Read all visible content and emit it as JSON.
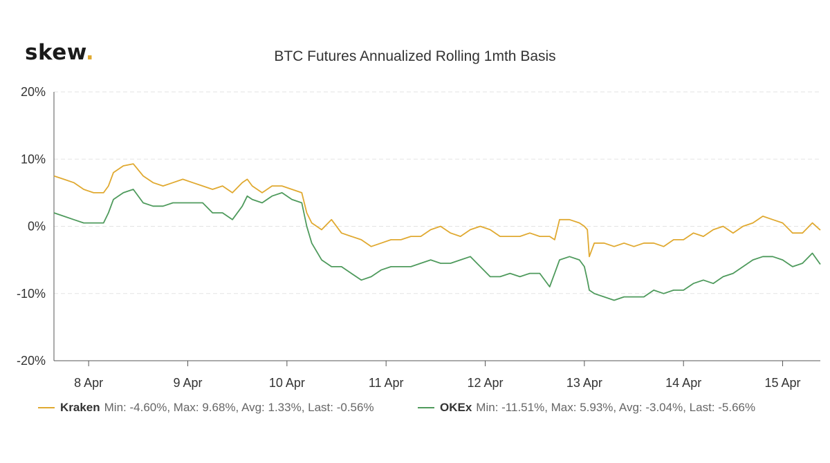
{
  "logo": {
    "text": "skew",
    "dot": "."
  },
  "chart_data": {
    "type": "line",
    "title": "BTC Futures Annualized Rolling 1mth Basis",
    "xlabel": "",
    "ylabel": "",
    "ylim": [
      -20,
      20
    ],
    "yticks": [
      20,
      10,
      0,
      -10,
      -20
    ],
    "ytick_labels": [
      "20%",
      "10%",
      "0%",
      "-10%",
      "-20%"
    ],
    "xlim": [
      7.65,
      15.38
    ],
    "xticks": [
      8,
      9,
      10,
      11,
      12,
      13,
      14,
      15
    ],
    "xtick_labels": [
      "8 Apr",
      "9 Apr",
      "10 Apr",
      "11 Apr",
      "12 Apr",
      "13 Apr",
      "14 Apr",
      "15 Apr"
    ],
    "grid": "horizontal-dashed",
    "legend_position": "bottom",
    "series": [
      {
        "name": "Kraken",
        "color": "#e0a930",
        "stats": "Min: -4.60%, Max: 9.68%, Avg: 1.33%, Last: -0.56%",
        "x": [
          7.65,
          7.75,
          7.85,
          7.95,
          8.05,
          8.15,
          8.2,
          8.25,
          8.35,
          8.45,
          8.55,
          8.65,
          8.75,
          8.85,
          8.95,
          9.05,
          9.15,
          9.25,
          9.35,
          9.45,
          9.55,
          9.6,
          9.65,
          9.75,
          9.85,
          9.95,
          10.05,
          10.15,
          10.2,
          10.25,
          10.35,
          10.45,
          10.55,
          10.65,
          10.75,
          10.85,
          10.95,
          11.05,
          11.15,
          11.25,
          11.35,
          11.45,
          11.55,
          11.65,
          11.75,
          11.85,
          11.95,
          12.05,
          12.15,
          12.25,
          12.35,
          12.45,
          12.55,
          12.65,
          12.7,
          12.75,
          12.85,
          12.95,
          13.0,
          13.03,
          13.05,
          13.1,
          13.2,
          13.3,
          13.4,
          13.5,
          13.6,
          13.7,
          13.8,
          13.9,
          14.0,
          14.1,
          14.2,
          14.3,
          14.4,
          14.5,
          14.6,
          14.7,
          14.8,
          14.9,
          15.0,
          15.1,
          15.2,
          15.3,
          15.38
        ],
        "y": [
          7.5,
          7.0,
          6.5,
          5.5,
          5.0,
          5.0,
          6.0,
          8.0,
          9.0,
          9.3,
          7.5,
          6.5,
          6.0,
          6.5,
          7.0,
          6.5,
          6.0,
          5.5,
          6.0,
          5.0,
          6.5,
          7.0,
          6.0,
          5.0,
          6.0,
          6.0,
          5.5,
          5.0,
          2.0,
          0.5,
          -0.5,
          1.0,
          -1.0,
          -1.5,
          -2.0,
          -3.0,
          -2.5,
          -2.0,
          -2.0,
          -1.5,
          -1.5,
          -0.5,
          0.0,
          -1.0,
          -1.5,
          -0.5,
          0.0,
          -0.5,
          -1.5,
          -1.5,
          -1.5,
          -1.0,
          -1.5,
          -1.5,
          -2.0,
          1.0,
          1.0,
          0.5,
          0.0,
          -0.5,
          -4.5,
          -2.5,
          -2.5,
          -3.0,
          -2.5,
          -3.0,
          -2.5,
          -2.5,
          -3.0,
          -2.0,
          -2.0,
          -1.0,
          -1.5,
          -0.5,
          0.0,
          -1.0,
          0.0,
          0.5,
          1.5,
          1.0,
          0.5,
          -1.0,
          -1.0,
          0.5,
          -0.56
        ]
      },
      {
        "name": "OKEx",
        "color": "#4e9a5c",
        "stats": "Min: -11.51%, Max: 5.93%, Avg: -3.04%, Last: -5.66%",
        "x": [
          7.65,
          7.75,
          7.85,
          7.95,
          8.05,
          8.15,
          8.2,
          8.25,
          8.35,
          8.45,
          8.55,
          8.65,
          8.75,
          8.85,
          8.95,
          9.05,
          9.15,
          9.25,
          9.35,
          9.45,
          9.55,
          9.6,
          9.65,
          9.75,
          9.85,
          9.95,
          10.05,
          10.15,
          10.2,
          10.25,
          10.35,
          10.45,
          10.55,
          10.65,
          10.75,
          10.85,
          10.95,
          11.05,
          11.15,
          11.25,
          11.35,
          11.45,
          11.55,
          11.65,
          11.75,
          11.85,
          11.95,
          12.05,
          12.15,
          12.25,
          12.35,
          12.45,
          12.55,
          12.65,
          12.7,
          12.75,
          12.85,
          12.95,
          13.0,
          13.03,
          13.05,
          13.1,
          13.2,
          13.3,
          13.4,
          13.5,
          13.6,
          13.7,
          13.8,
          13.9,
          14.0,
          14.1,
          14.2,
          14.3,
          14.4,
          14.5,
          14.6,
          14.7,
          14.8,
          14.9,
          15.0,
          15.1,
          15.2,
          15.3,
          15.38
        ],
        "y": [
          2.0,
          1.5,
          1.0,
          0.5,
          0.5,
          0.5,
          2.0,
          4.0,
          5.0,
          5.5,
          3.5,
          3.0,
          3.0,
          3.5,
          3.5,
          3.5,
          3.5,
          2.0,
          2.0,
          1.0,
          3.0,
          4.5,
          4.0,
          3.5,
          4.5,
          5.0,
          4.0,
          3.5,
          0.0,
          -2.5,
          -5.0,
          -6.0,
          -6.0,
          -7.0,
          -8.0,
          -7.5,
          -6.5,
          -6.0,
          -6.0,
          -6.0,
          -5.5,
          -5.0,
          -5.5,
          -5.5,
          -5.0,
          -4.5,
          -6.0,
          -7.5,
          -7.5,
          -7.0,
          -7.5,
          -7.0,
          -7.0,
          -9.0,
          -7.0,
          -5.0,
          -4.5,
          -5.0,
          -6.0,
          -8.0,
          -9.5,
          -10.0,
          -10.5,
          -11.0,
          -10.5,
          -10.5,
          -10.5,
          -9.5,
          -10.0,
          -9.5,
          -9.5,
          -8.5,
          -8.0,
          -8.5,
          -7.5,
          -7.0,
          -6.0,
          -5.0,
          -4.5,
          -4.5,
          -5.0,
          -6.0,
          -5.5,
          -4.0,
          -5.66
        ]
      }
    ]
  }
}
